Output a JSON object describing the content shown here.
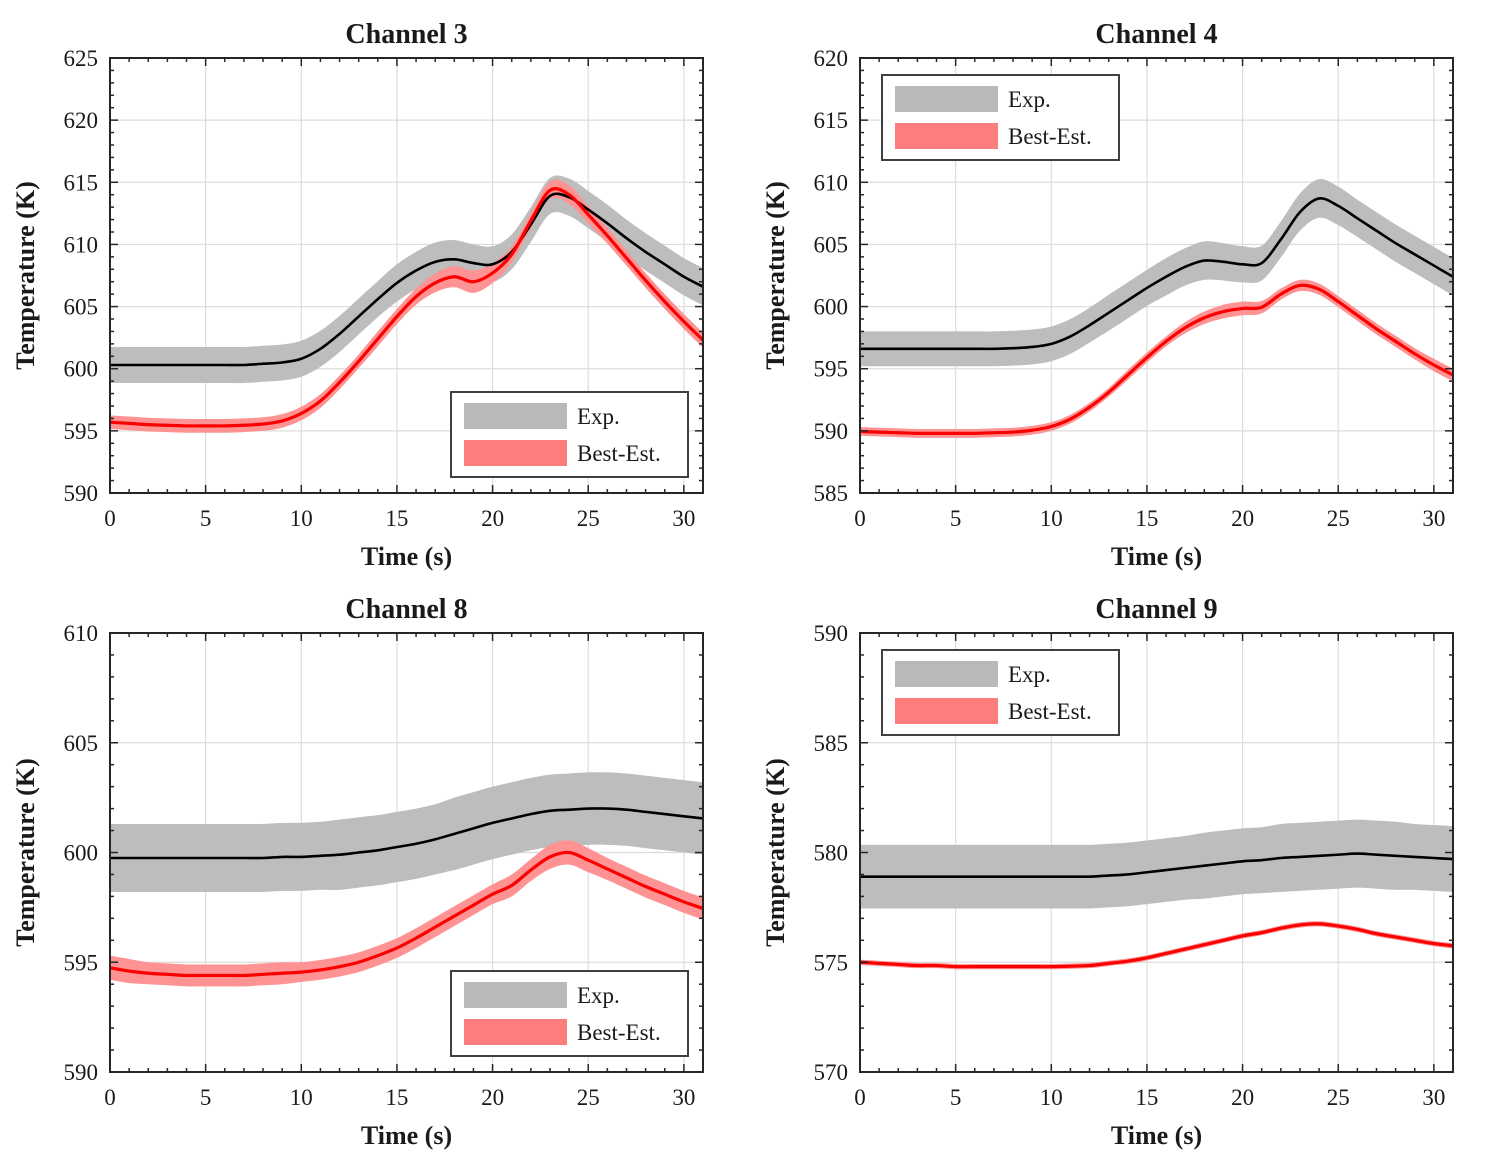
{
  "page": {
    "background": "#ffffff"
  },
  "colors": {
    "exp_line": "#000000",
    "exp_band": "#bdbdbd",
    "best_line": "#fb0000",
    "best_band": "#ff9292",
    "legend_exp_swatch": "#b9b9b9",
    "legend_best_swatch": "#fd7c7c",
    "legend_border": "#3f3f3f",
    "grid": "#dcdcdc",
    "axis": "#262626",
    "text": "#1a1a1a"
  },
  "legend_labels": {
    "exp": "Exp.",
    "best": "Best-Est."
  },
  "chart_data": [
    {
      "type": "line",
      "title": "Channel 3",
      "xlabel": "Time (s)",
      "ylabel": "Temperature (K)",
      "xlim": [
        0,
        31
      ],
      "ylim": [
        590,
        625
      ],
      "xticks": [
        0,
        5,
        10,
        15,
        20,
        25,
        30
      ],
      "yticks": [
        590,
        595,
        600,
        605,
        610,
        615,
        620,
        625
      ],
      "x_minor_step": 1,
      "y_minor_step": 1,
      "grid": true,
      "legend": {
        "location": "southeast",
        "entries": [
          "Exp.",
          "Best-Est."
        ]
      },
      "x": [
        0,
        1,
        2,
        3,
        4,
        5,
        6,
        7,
        8,
        9,
        10,
        11,
        12,
        13,
        14,
        15,
        16,
        17,
        18,
        19,
        20,
        21,
        22,
        23,
        24,
        25,
        26,
        27,
        28,
        29,
        30,
        31
      ],
      "series": [
        {
          "name": "Exp.",
          "role": "exp",
          "y": [
            600.3,
            600.3,
            600.3,
            600.3,
            600.3,
            600.3,
            600.3,
            600.3,
            600.4,
            600.5,
            600.8,
            601.6,
            602.8,
            604.2,
            605.6,
            606.9,
            607.9,
            608.6,
            608.8,
            608.5,
            608.4,
            609.4,
            611.6,
            613.9,
            613.8,
            612.8,
            611.7,
            610.5,
            609.4,
            608.4,
            607.4,
            606.6
          ],
          "band": [
            1.45,
            1.45,
            1.45,
            1.45,
            1.45,
            1.45,
            1.45,
            1.45,
            1.45,
            1.45,
            1.45,
            1.45,
            1.45,
            1.45,
            1.45,
            1.5,
            1.5,
            1.55,
            1.55,
            1.5,
            1.45,
            1.4,
            1.4,
            1.45,
            1.5,
            1.5,
            1.5,
            1.5,
            1.5,
            1.5,
            1.5,
            1.5
          ]
        },
        {
          "name": "Best-Est.",
          "role": "best",
          "y": [
            595.7,
            595.6,
            595.5,
            595.45,
            595.4,
            595.4,
            595.4,
            595.45,
            595.55,
            595.8,
            596.4,
            597.4,
            598.9,
            600.6,
            602.4,
            604.2,
            605.8,
            606.9,
            607.4,
            607.0,
            607.7,
            609.2,
            611.9,
            614.35,
            614.0,
            612.4,
            610.7,
            608.9,
            607.1,
            605.4,
            603.8,
            602.3
          ],
          "band": [
            0.55,
            0.55,
            0.55,
            0.55,
            0.55,
            0.55,
            0.55,
            0.55,
            0.55,
            0.55,
            0.55,
            0.55,
            0.55,
            0.55,
            0.6,
            0.6,
            0.65,
            0.75,
            0.85,
            0.9,
            0.8,
            0.65,
            0.6,
            0.7,
            0.75,
            0.7,
            0.65,
            0.6,
            0.6,
            0.6,
            0.6,
            0.6
          ]
        }
      ]
    },
    {
      "type": "line",
      "title": "Channel 4",
      "xlabel": "Time (s)",
      "ylabel": "Temperature (K)",
      "xlim": [
        0,
        31
      ],
      "ylim": [
        585,
        620
      ],
      "xticks": [
        0,
        5,
        10,
        15,
        20,
        25,
        30
      ],
      "yticks": [
        585,
        590,
        595,
        600,
        605,
        610,
        615,
        620
      ],
      "x_minor_step": 1,
      "y_minor_step": 1,
      "grid": true,
      "legend": {
        "location": "northwest",
        "entries": [
          "Exp.",
          "Best-Est."
        ]
      },
      "x": [
        0,
        1,
        2,
        3,
        4,
        5,
        6,
        7,
        8,
        9,
        10,
        11,
        12,
        13,
        14,
        15,
        16,
        17,
        18,
        19,
        20,
        21,
        22,
        23,
        24,
        25,
        26,
        27,
        28,
        29,
        30,
        31
      ],
      "series": [
        {
          "name": "Exp.",
          "role": "exp",
          "y": [
            596.6,
            596.6,
            596.6,
            596.6,
            596.6,
            596.6,
            596.6,
            596.6,
            596.65,
            596.75,
            597.0,
            597.6,
            598.5,
            599.5,
            600.5,
            601.5,
            602.4,
            603.2,
            603.7,
            603.6,
            603.4,
            603.5,
            605.4,
            607.6,
            608.7,
            608.1,
            607.1,
            606.1,
            605.1,
            604.2,
            603.3,
            602.4
          ],
          "band": [
            1.4,
            1.4,
            1.4,
            1.4,
            1.4,
            1.4,
            1.4,
            1.4,
            1.4,
            1.4,
            1.4,
            1.4,
            1.4,
            1.45,
            1.45,
            1.45,
            1.5,
            1.5,
            1.55,
            1.5,
            1.45,
            1.4,
            1.45,
            1.5,
            1.55,
            1.55,
            1.5,
            1.5,
            1.5,
            1.5,
            1.5,
            1.5
          ]
        },
        {
          "name": "Best-Est.",
          "role": "best",
          "y": [
            589.95,
            589.9,
            589.85,
            589.8,
            589.8,
            589.8,
            589.8,
            589.85,
            589.9,
            590.05,
            590.35,
            590.95,
            591.9,
            593.1,
            594.5,
            595.9,
            597.2,
            598.3,
            599.1,
            599.6,
            599.85,
            599.95,
            601.0,
            601.7,
            601.4,
            600.4,
            599.3,
            598.2,
            597.2,
            596.2,
            595.3,
            594.5
          ],
          "band": [
            0.35,
            0.35,
            0.35,
            0.35,
            0.35,
            0.35,
            0.35,
            0.35,
            0.35,
            0.35,
            0.35,
            0.35,
            0.35,
            0.35,
            0.4,
            0.4,
            0.4,
            0.45,
            0.5,
            0.55,
            0.55,
            0.5,
            0.45,
            0.45,
            0.45,
            0.45,
            0.45,
            0.45,
            0.45,
            0.45,
            0.5,
            0.5
          ]
        }
      ]
    },
    {
      "type": "line",
      "title": "Channel 8",
      "xlabel": "Time (s)",
      "ylabel": "Temperature (K)",
      "xlim": [
        0,
        31
      ],
      "ylim": [
        590,
        610
      ],
      "xticks": [
        0,
        5,
        10,
        15,
        20,
        25,
        30
      ],
      "yticks": [
        590,
        595,
        600,
        605,
        610
      ],
      "x_minor_step": 1,
      "y_minor_step": 1,
      "grid": true,
      "legend": {
        "location": "southeast",
        "entries": [
          "Exp.",
          "Best-Est."
        ]
      },
      "x": [
        0,
        1,
        2,
        3,
        4,
        5,
        6,
        7,
        8,
        9,
        10,
        11,
        12,
        13,
        14,
        15,
        16,
        17,
        18,
        19,
        20,
        21,
        22,
        23,
        24,
        25,
        26,
        27,
        28,
        29,
        30,
        31
      ],
      "series": [
        {
          "name": "Exp.",
          "role": "exp",
          "y": [
            599.75,
            599.75,
            599.75,
            599.75,
            599.75,
            599.75,
            599.75,
            599.75,
            599.75,
            599.8,
            599.8,
            599.85,
            599.9,
            600.0,
            600.1,
            600.25,
            600.4,
            600.6,
            600.85,
            601.1,
            601.35,
            601.55,
            601.75,
            601.9,
            601.95,
            602.0,
            602.0,
            601.95,
            601.85,
            601.75,
            601.65,
            601.55
          ],
          "band": [
            1.55,
            1.55,
            1.55,
            1.55,
            1.55,
            1.55,
            1.55,
            1.55,
            1.55,
            1.55,
            1.55,
            1.55,
            1.6,
            1.6,
            1.6,
            1.6,
            1.6,
            1.6,
            1.65,
            1.65,
            1.65,
            1.65,
            1.65,
            1.65,
            1.65,
            1.65,
            1.65,
            1.65,
            1.65,
            1.65,
            1.65,
            1.65
          ]
        },
        {
          "name": "Best-Est.",
          "role": "best",
          "y": [
            594.75,
            594.6,
            594.5,
            594.45,
            594.4,
            594.4,
            594.4,
            594.4,
            594.45,
            594.5,
            594.55,
            594.65,
            594.8,
            595.0,
            595.3,
            595.65,
            596.1,
            596.6,
            597.1,
            597.6,
            598.1,
            598.5,
            599.2,
            599.8,
            600.0,
            599.65,
            599.25,
            598.85,
            598.45,
            598.1,
            597.75,
            597.45
          ],
          "band": [
            0.55,
            0.55,
            0.5,
            0.5,
            0.5,
            0.5,
            0.5,
            0.5,
            0.5,
            0.5,
            0.45,
            0.45,
            0.45,
            0.45,
            0.45,
            0.45,
            0.45,
            0.45,
            0.45,
            0.45,
            0.45,
            0.5,
            0.5,
            0.55,
            0.55,
            0.55,
            0.5,
            0.5,
            0.5,
            0.5,
            0.5,
            0.5
          ]
        }
      ]
    },
    {
      "type": "line",
      "title": "Channel 9",
      "xlabel": "Time (s)",
      "ylabel": "Temperature (K)",
      "xlim": [
        0,
        31
      ],
      "ylim": [
        570,
        590
      ],
      "xticks": [
        0,
        5,
        10,
        15,
        20,
        25,
        30
      ],
      "yticks": [
        570,
        575,
        580,
        585,
        590
      ],
      "x_minor_step": 1,
      "y_minor_step": 1,
      "grid": true,
      "legend": {
        "location": "northwest",
        "entries": [
          "Exp.",
          "Best-Est."
        ]
      },
      "x": [
        0,
        1,
        2,
        3,
        4,
        5,
        6,
        7,
        8,
        9,
        10,
        11,
        12,
        13,
        14,
        15,
        16,
        17,
        18,
        19,
        20,
        21,
        22,
        23,
        24,
        25,
        26,
        27,
        28,
        29,
        30,
        31
      ],
      "series": [
        {
          "name": "Exp.",
          "role": "exp",
          "y": [
            578.9,
            578.9,
            578.9,
            578.9,
            578.9,
            578.9,
            578.9,
            578.9,
            578.9,
            578.9,
            578.9,
            578.9,
            578.9,
            578.95,
            579.0,
            579.1,
            579.2,
            579.3,
            579.4,
            579.5,
            579.6,
            579.65,
            579.75,
            579.8,
            579.85,
            579.9,
            579.95,
            579.9,
            579.85,
            579.8,
            579.75,
            579.7
          ],
          "band": [
            1.45,
            1.45,
            1.45,
            1.45,
            1.45,
            1.45,
            1.45,
            1.45,
            1.45,
            1.45,
            1.45,
            1.45,
            1.45,
            1.45,
            1.45,
            1.45,
            1.45,
            1.45,
            1.5,
            1.5,
            1.5,
            1.5,
            1.55,
            1.55,
            1.55,
            1.55,
            1.55,
            1.55,
            1.55,
            1.5,
            1.5,
            1.5
          ]
        },
        {
          "name": "Best-Est.",
          "role": "best",
          "y": [
            575.0,
            574.95,
            574.9,
            574.85,
            574.85,
            574.8,
            574.8,
            574.8,
            574.8,
            574.8,
            574.8,
            574.82,
            574.85,
            574.95,
            575.05,
            575.2,
            575.4,
            575.6,
            575.8,
            576.0,
            576.2,
            576.35,
            576.55,
            576.7,
            576.75,
            576.65,
            576.5,
            576.3,
            576.15,
            576.0,
            575.85,
            575.75
          ],
          "band": [
            0.12,
            0.12,
            0.12,
            0.12,
            0.12,
            0.12,
            0.12,
            0.12,
            0.12,
            0.12,
            0.12,
            0.12,
            0.12,
            0.12,
            0.12,
            0.12,
            0.12,
            0.12,
            0.12,
            0.12,
            0.12,
            0.12,
            0.12,
            0.12,
            0.12,
            0.12,
            0.12,
            0.12,
            0.12,
            0.12,
            0.12,
            0.12
          ]
        }
      ]
    }
  ]
}
